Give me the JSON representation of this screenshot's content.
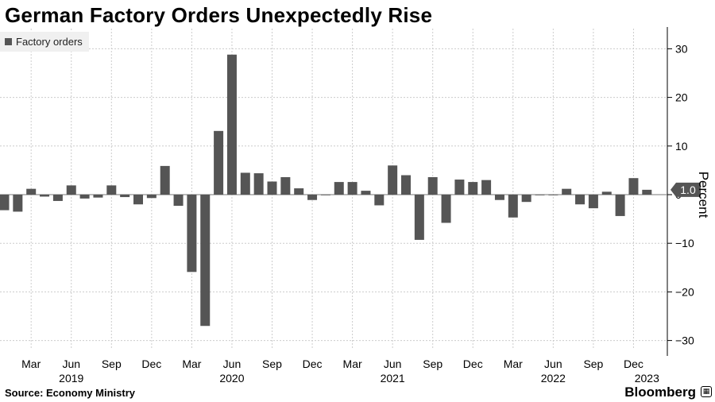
{
  "header": {
    "title": "German Factory Orders Unexpectedly Rise"
  },
  "footer": {
    "source": "Source: Economy Ministry",
    "brand": "Bloomberg"
  },
  "colors": {
    "bar": "#555555",
    "grid": "#cccccc",
    "callout": "#555555",
    "legend_bg": "#f0f0f0"
  },
  "chart_data": {
    "type": "bar",
    "title": "German Factory Orders Unexpectedly Rise",
    "legend": [
      "Factory orders"
    ],
    "ylabel": "Percent",
    "ylim": [
      -33,
      35
    ],
    "yticks": [
      30,
      20,
      10,
      0,
      -10,
      -20,
      -30
    ],
    "last_value_label": "1.0",
    "categories": [
      "2019-01",
      "2019-02",
      "2019-03",
      "2019-04",
      "2019-05",
      "2019-06",
      "2019-07",
      "2019-08",
      "2019-09",
      "2019-10",
      "2019-11",
      "2019-12",
      "2020-01",
      "2020-02",
      "2020-03",
      "2020-04",
      "2020-05",
      "2020-06",
      "2020-07",
      "2020-08",
      "2020-09",
      "2020-10",
      "2020-11",
      "2020-12",
      "2021-01",
      "2021-02",
      "2021-03",
      "2021-04",
      "2021-05",
      "2021-06",
      "2021-07",
      "2021-08",
      "2021-09",
      "2021-10",
      "2021-11",
      "2021-12",
      "2022-01",
      "2022-02",
      "2022-03",
      "2022-04",
      "2022-05",
      "2022-06",
      "2022-07",
      "2022-08",
      "2022-09",
      "2022-10",
      "2022-11",
      "2022-12",
      "2023-01"
    ],
    "values": [
      -3.2,
      -3.5,
      1.2,
      -0.4,
      -1.3,
      1.9,
      -0.8,
      -0.6,
      1.9,
      -0.5,
      -2.0,
      -0.7,
      5.9,
      -2.3,
      -15.9,
      -27.0,
      13.1,
      28.8,
      4.5,
      4.4,
      2.7,
      3.6,
      1.3,
      -1.1,
      0.0,
      2.6,
      2.6,
      0.8,
      -2.2,
      6.0,
      4.0,
      -9.3,
      3.6,
      -5.8,
      3.1,
      2.6,
      3.0,
      -1.1,
      -4.7,
      -1.5,
      0.0,
      0.0,
      1.2,
      -2.0,
      -2.8,
      0.6,
      -4.4,
      3.4,
      1.0
    ],
    "x_month_labels": [
      "Mar",
      "Jun",
      "Sep",
      "Dec",
      "Mar",
      "Jun",
      "Sep",
      "Dec",
      "Mar",
      "Jun",
      "Sep",
      "Dec",
      "Mar",
      "Jun",
      "Sep",
      "Dec"
    ],
    "x_month_label_index": [
      2,
      5,
      8,
      11,
      14,
      17,
      20,
      23,
      26,
      29,
      32,
      35,
      38,
      41,
      44,
      47
    ],
    "x_year_labels": [
      "2019",
      "2020",
      "2021",
      "2022",
      "2023"
    ],
    "x_year_label_index": [
      5,
      17,
      29,
      41,
      48
    ]
  }
}
